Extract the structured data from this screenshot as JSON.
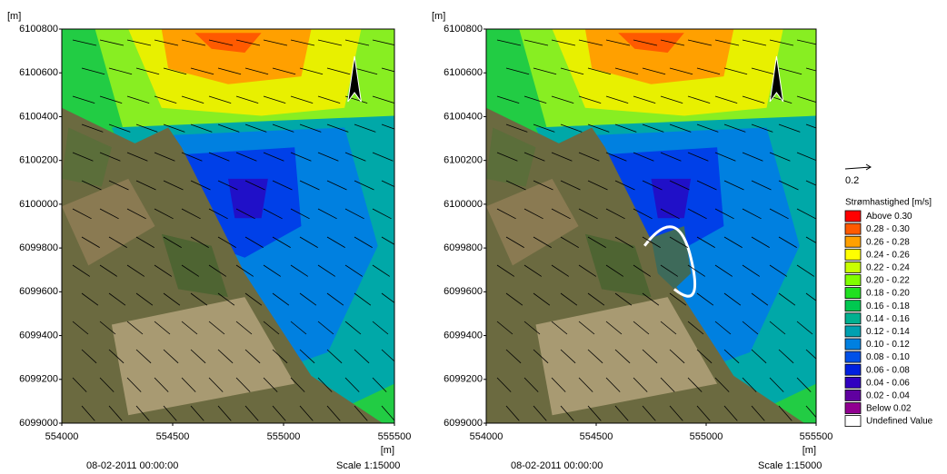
{
  "panels": [
    {
      "y_unit": "[m]",
      "x_unit": "[m]",
      "xlim": [
        554000,
        555500
      ],
      "ylim": [
        6099000,
        6100800
      ],
      "yticks": [
        6100800,
        6100600,
        6100400,
        6100200,
        6100000,
        6099800,
        6099600,
        6099400,
        6099200,
        6099000
      ],
      "xticks": [
        554000,
        554500,
        555000,
        555500
      ],
      "date": "08-02-2011 00:00:00",
      "scale": "Scale 1:15000"
    },
    {
      "y_unit": "[m]",
      "x_unit": "[m]",
      "xlim": [
        554000,
        555500
      ],
      "ylim": [
        6099000,
        6100800
      ],
      "yticks": [
        6100800,
        6100600,
        6100400,
        6100200,
        6100000,
        6099800,
        6099600,
        6099400,
        6099200,
        6099000
      ],
      "xticks": [
        554000,
        554500,
        555000,
        555500
      ],
      "date": "08-02-2011 00:00:00",
      "scale": "Scale 1:15000"
    }
  ],
  "legend": {
    "vector_scale": 0.2,
    "title": "Strømhastighed [m/s]",
    "items": [
      {
        "label": "Above 0.30",
        "color": "#ff0000"
      },
      {
        "label": "0.28 - 0.30",
        "color": "#ff5a00"
      },
      {
        "label": "0.26 - 0.28",
        "color": "#ffa000"
      },
      {
        "label": "0.24 - 0.26",
        "color": "#ffff00"
      },
      {
        "label": "0.22 - 0.24",
        "color": "#c8ff00"
      },
      {
        "label": "0.20 - 0.22",
        "color": "#80ff00"
      },
      {
        "label": "0.18 - 0.20",
        "color": "#20e020"
      },
      {
        "label": "0.16 - 0.18",
        "color": "#00c850"
      },
      {
        "label": "0.14 - 0.16",
        "color": "#00b090"
      },
      {
        "label": "0.12 - 0.14",
        "color": "#00a0b0"
      },
      {
        "label": "0.10 - 0.12",
        "color": "#0080e0"
      },
      {
        "label": "0.08 - 0.10",
        "color": "#0050e8"
      },
      {
        "label": "0.06 - 0.08",
        "color": "#0020e0"
      },
      {
        "label": "0.04 - 0.06",
        "color": "#3000c0"
      },
      {
        "label": "0.02 - 0.04",
        "color": "#6000a0"
      },
      {
        "label": "Below 0.02",
        "color": "#900090"
      },
      {
        "label": "Undefined Value",
        "color": "#ffffff"
      }
    ]
  }
}
